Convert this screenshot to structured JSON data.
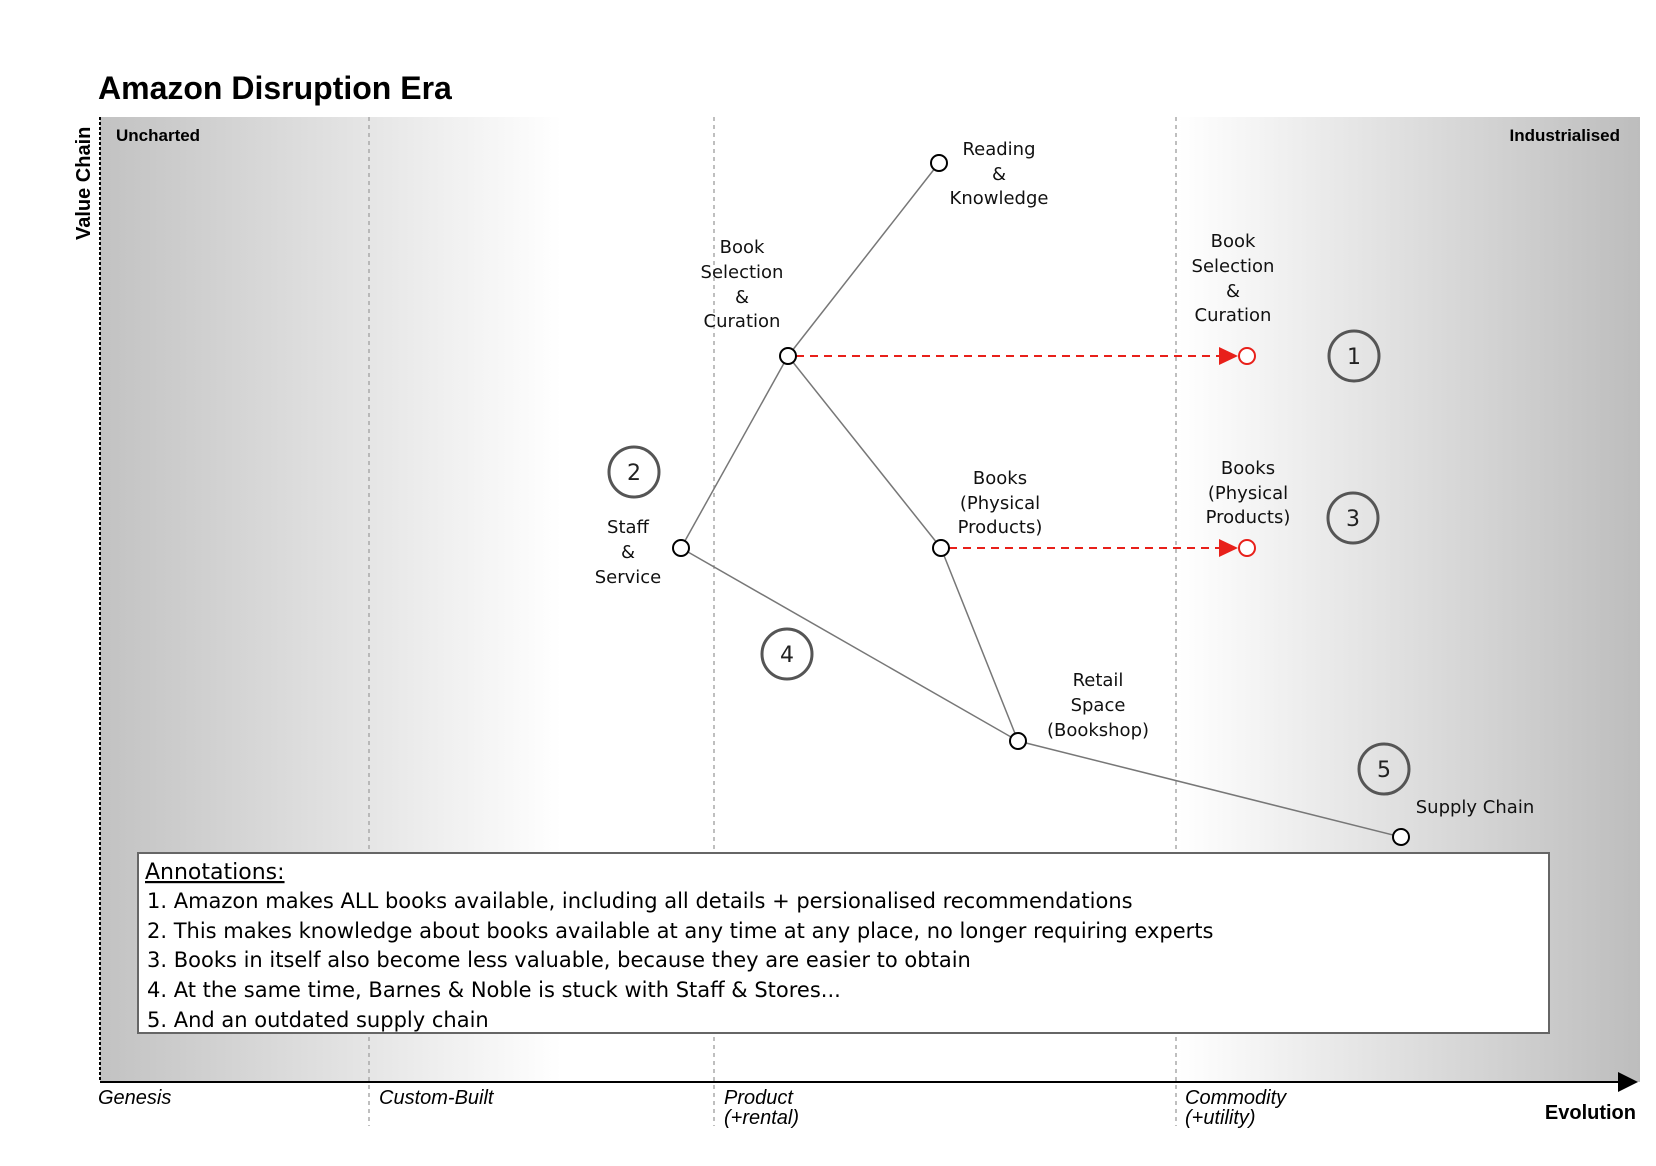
{
  "title": "Amazon Disruption Era",
  "axes": {
    "y_label": "Value Chain",
    "x_label": "Evolution",
    "top_left": "Uncharted",
    "top_right": "Industrialised"
  },
  "stages": [
    {
      "id": "genesis",
      "lines": [
        "Genesis"
      ]
    },
    {
      "id": "custom",
      "lines": [
        "Custom-Built"
      ]
    },
    {
      "id": "product",
      "lines": [
        "Product",
        "(+rental)"
      ]
    },
    {
      "id": "commodity",
      "lines": [
        "Commodity",
        "(+utility)"
      ]
    }
  ],
  "components": [
    {
      "id": "reading",
      "lines": [
        "Reading",
        "&",
        "Knowledge"
      ],
      "color": "#000000"
    },
    {
      "id": "curation",
      "lines": [
        "Book",
        "Selection",
        "&",
        "Curation"
      ],
      "color": "#000000"
    },
    {
      "id": "curation_future",
      "lines": [
        "Book",
        "Selection",
        "&",
        "Curation"
      ],
      "color": "#e8201a"
    },
    {
      "id": "staff",
      "lines": [
        "Staff",
        "&",
        "Service"
      ],
      "color": "#000000"
    },
    {
      "id": "books",
      "lines": [
        "Books",
        "(Physical",
        "Products)"
      ],
      "color": "#000000"
    },
    {
      "id": "books_future",
      "lines": [
        "Books",
        "(Physical",
        "Products)"
      ],
      "color": "#e8201a"
    },
    {
      "id": "retail",
      "lines": [
        "Retail",
        "Space",
        "(Bookshop)"
      ],
      "color": "#000000"
    },
    {
      "id": "supply",
      "lines": [
        "Supply Chain"
      ],
      "color": "#000000"
    }
  ],
  "links": [
    [
      "reading",
      "curation"
    ],
    [
      "curation",
      "staff"
    ],
    [
      "curation",
      "books"
    ],
    [
      "staff",
      "retail"
    ],
    [
      "books",
      "retail"
    ],
    [
      "retail",
      "supply"
    ]
  ],
  "evolutions": [
    {
      "from": "curation",
      "to": "curation_future"
    },
    {
      "from": "books",
      "to": "books_future"
    }
  ],
  "markers": [
    "1",
    "2",
    "3",
    "4",
    "5"
  ],
  "annotations": {
    "title": "Annotations:",
    "lines": [
      "1. Amazon makes ALL books available, including all details + persionalised recommendations",
      "2. This makes knowledge about books available at any time at any place, no longer requiring experts",
      "3. Books in itself also become less valuable, because they are easier to obtain",
      "4. At the same time, Barnes & Noble is stuck with Staff & Stores...",
      "5. And an outdated supply chain"
    ]
  },
  "colors": {
    "evolution_arrow": "#e8201a",
    "link": "#777777",
    "gradient_dark": "#bdbdbd"
  }
}
